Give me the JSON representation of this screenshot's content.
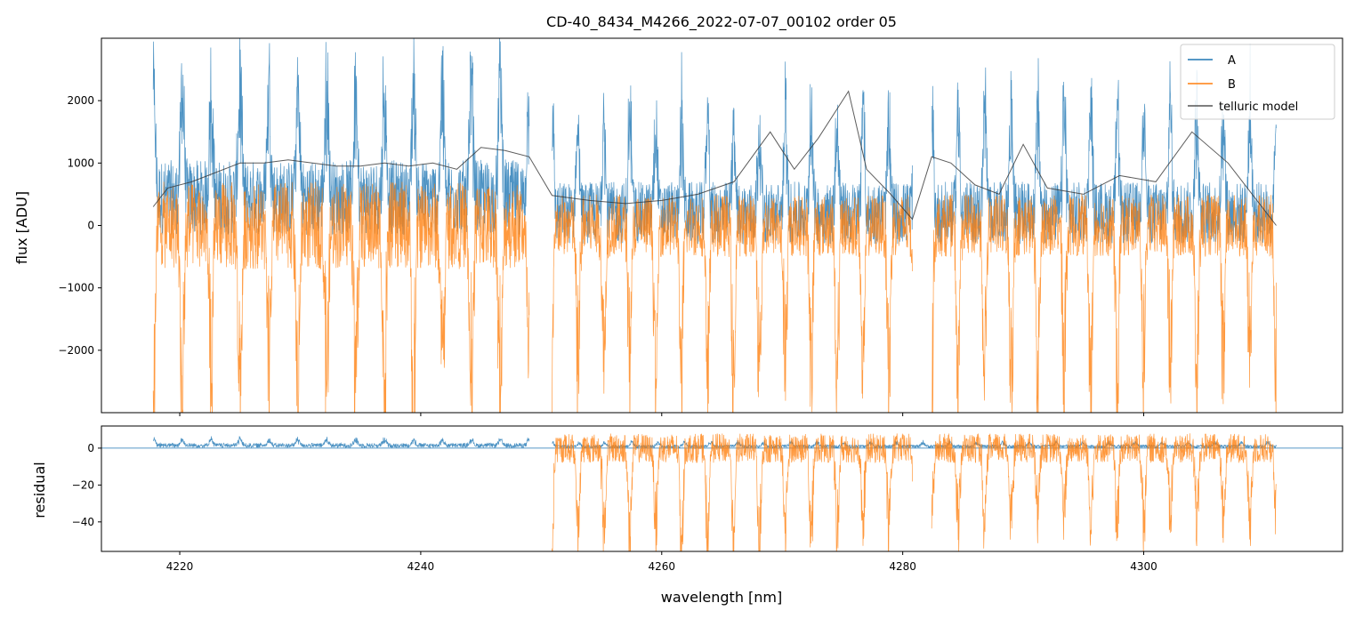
{
  "chart_data": [
    {
      "type": "line",
      "title": "CD-40_8434_M4266_2022-07-07_00102  order 05",
      "xlabel": "",
      "ylabel": "flux [ADU]",
      "xlim": [
        4213.5,
        4316.5
      ],
      "ylim": [
        -3000,
        3000
      ],
      "yticks": [
        2000,
        1000,
        0,
        -1000,
        -2000
      ],
      "xticks": [
        4220,
        4240,
        4260,
        4280,
        4300
      ],
      "legend": {
        "placement": "top-right",
        "entries": [
          "A",
          "B",
          "telluric model"
        ]
      },
      "series": [
        {
          "name": "A",
          "color": "#1f77b4",
          "segments": [
            {
              "x_start": 4217.8,
              "x_end": 4249.0,
              "baseline": 450,
              "amplitude": 1700,
              "noise": 600,
              "period": 2.4
            },
            {
              "x_start": 4250.9,
              "x_end": 4280.8,
              "baseline": 200,
              "amplitude": 1500,
              "noise": 500,
              "period": 2.15
            },
            {
              "x_start": 4282.4,
              "x_end": 4311.0,
              "baseline": 200,
              "amplitude": 1600,
              "noise": 500,
              "period": 2.2
            }
          ]
        },
        {
          "name": "B",
          "color": "#ff7f0e",
          "segments": [
            {
              "x_start": 4217.8,
              "x_end": 4249.0,
              "baseline": 0,
              "amplitude": -2600,
              "noise": 700,
              "period": 2.4
            },
            {
              "x_start": 4250.9,
              "x_end": 4280.8,
              "baseline": 0,
              "amplitude": -2400,
              "noise": 500,
              "period": 2.15
            },
            {
              "x_start": 4282.4,
              "x_end": 4311.0,
              "baseline": 0,
              "amplitude": -2400,
              "noise": 500,
              "period": 2.2
            }
          ]
        },
        {
          "name": "telluric model",
          "color": "#333333",
          "points": [
            [
              4217.8,
              300
            ],
            [
              4219,
              600
            ],
            [
              4221,
              700
            ],
            [
              4223,
              850
            ],
            [
              4225,
              1000
            ],
            [
              4227,
              1000
            ],
            [
              4229,
              1050
            ],
            [
              4231,
              1000
            ],
            [
              4233,
              950
            ],
            [
              4235,
              950
            ],
            [
              4237,
              1000
            ],
            [
              4239,
              950
            ],
            [
              4241,
              1000
            ],
            [
              4243,
              900
            ],
            [
              4245,
              1250
            ],
            [
              4247,
              1200
            ],
            [
              4249,
              1100
            ],
            [
              4250.9,
              480
            ],
            [
              4254,
              400
            ],
            [
              4257,
              350
            ],
            [
              4260,
              400
            ],
            [
              4263,
              500
            ],
            [
              4266,
              700
            ],
            [
              4269,
              1500
            ],
            [
              4271,
              900
            ],
            [
              4273,
              1400
            ],
            [
              4275.5,
              2150
            ],
            [
              4277,
              900
            ],
            [
              4279,
              500
            ],
            [
              4280.8,
              100
            ],
            [
              4282.4,
              1100
            ],
            [
              4284,
              1000
            ],
            [
              4286,
              650
            ],
            [
              4288,
              500
            ],
            [
              4290,
              1300
            ],
            [
              4292,
              600
            ],
            [
              4295,
              500
            ],
            [
              4298,
              800
            ],
            [
              4301,
              700
            ],
            [
              4304,
              1500
            ],
            [
              4307,
              1000
            ],
            [
              4309,
              500
            ],
            [
              4311,
              0
            ]
          ]
        }
      ]
    },
    {
      "type": "line",
      "title": "",
      "xlabel": "wavelength [nm]",
      "ylabel": "residual",
      "xlim": [
        4213.5,
        4316.5
      ],
      "ylim": [
        -56,
        12
      ],
      "yticks": [
        0,
        -20,
        -40
      ],
      "xticks": [
        4220,
        4240,
        4260,
        4280,
        4300
      ],
      "series": [
        {
          "name": "A",
          "color": "#1f77b4",
          "segments": [
            {
              "x_start": 4217.8,
              "x_end": 4249.0,
              "baseline": 1.5,
              "amplitude": 3,
              "noise": 1.2,
              "period": 2.4
            },
            {
              "x_start": 4250.9,
              "x_end": 4311.0,
              "baseline": 1,
              "amplitude": 2,
              "noise": 0.8,
              "period": 2.2
            }
          ]
        },
        {
          "name": "B",
          "color": "#ff7f0e",
          "segments": [
            {
              "x_start": 4250.9,
              "x_end": 4280.8,
              "baseline": 0,
              "amplitude": -45,
              "noise": 8,
              "period": 2.15
            },
            {
              "x_start": 4282.4,
              "x_end": 4311.0,
              "baseline": 0,
              "amplitude": -40,
              "noise": 8,
              "period": 2.2
            }
          ]
        }
      ]
    }
  ],
  "x_tick_labels": [
    "4220",
    "4240",
    "4260",
    "4280",
    "4300"
  ],
  "top_y_tick_labels": [
    "2000",
    "1000",
    "0",
    "−1000",
    "−2000"
  ],
  "bottom_y_tick_labels": [
    "0",
    "−20",
    "−40"
  ]
}
